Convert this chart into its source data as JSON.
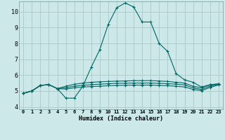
{
  "xlabel": "Humidex (Indice chaleur)",
  "background_color": "#cce8e8",
  "grid_color": "#b0cccc",
  "line_color": "#006666",
  "xlim": [
    -0.5,
    23.5
  ],
  "ylim": [
    3.85,
    10.65
  ],
  "yticks": [
    4,
    5,
    6,
    7,
    8,
    9,
    10
  ],
  "xtick_labels": [
    "0",
    "1",
    "2",
    "3",
    "4",
    "5",
    "6",
    "7",
    "8",
    "9",
    "10",
    "11",
    "12",
    "13",
    "14",
    "15",
    "16",
    "17",
    "18",
    "19",
    "20",
    "21",
    "22",
    "23"
  ],
  "lines": [
    {
      "x": [
        0,
        1,
        2,
        3,
        4,
        5,
        6,
        7,
        8,
        9,
        10,
        11,
        12,
        13,
        14,
        15,
        16,
        17,
        18,
        19,
        20,
        21,
        22,
        23
      ],
      "y": [
        4.85,
        5.0,
        5.35,
        5.4,
        5.15,
        4.55,
        4.55,
        5.3,
        6.5,
        7.6,
        9.2,
        10.25,
        10.55,
        10.3,
        9.35,
        9.35,
        8.0,
        7.5,
        6.1,
        5.7,
        5.55,
        5.25,
        5.4,
        5.45
      ]
    },
    {
      "x": [
        0,
        1,
        2,
        3,
        4,
        5,
        6,
        7,
        8,
        9,
        10,
        11,
        12,
        13,
        14,
        15,
        16,
        17,
        18,
        19,
        20,
        21,
        22,
        23
      ],
      "y": [
        4.85,
        5.0,
        5.35,
        5.4,
        5.15,
        5.3,
        5.42,
        5.5,
        5.55,
        5.58,
        5.6,
        5.62,
        5.63,
        5.65,
        5.65,
        5.65,
        5.63,
        5.6,
        5.55,
        5.5,
        5.3,
        5.2,
        5.38,
        5.44
      ]
    },
    {
      "x": [
        0,
        1,
        2,
        3,
        4,
        5,
        6,
        7,
        8,
        9,
        10,
        11,
        12,
        13,
        14,
        15,
        16,
        17,
        18,
        19,
        20,
        21,
        22,
        23
      ],
      "y": [
        4.85,
        5.0,
        5.35,
        5.4,
        5.15,
        5.2,
        5.3,
        5.36,
        5.4,
        5.43,
        5.46,
        5.48,
        5.49,
        5.5,
        5.5,
        5.5,
        5.48,
        5.46,
        5.43,
        5.38,
        5.2,
        5.1,
        5.3,
        5.42
      ]
    },
    {
      "x": [
        0,
        1,
        2,
        3,
        4,
        5,
        6,
        7,
        8,
        9,
        10,
        11,
        12,
        13,
        14,
        15,
        16,
        17,
        18,
        19,
        20,
        21,
        22,
        23
      ],
      "y": [
        4.85,
        5.0,
        5.35,
        5.4,
        5.15,
        5.12,
        5.2,
        5.25,
        5.28,
        5.3,
        5.33,
        5.35,
        5.36,
        5.37,
        5.37,
        5.37,
        5.35,
        5.33,
        5.3,
        5.25,
        5.1,
        5.02,
        5.22,
        5.38
      ]
    }
  ]
}
